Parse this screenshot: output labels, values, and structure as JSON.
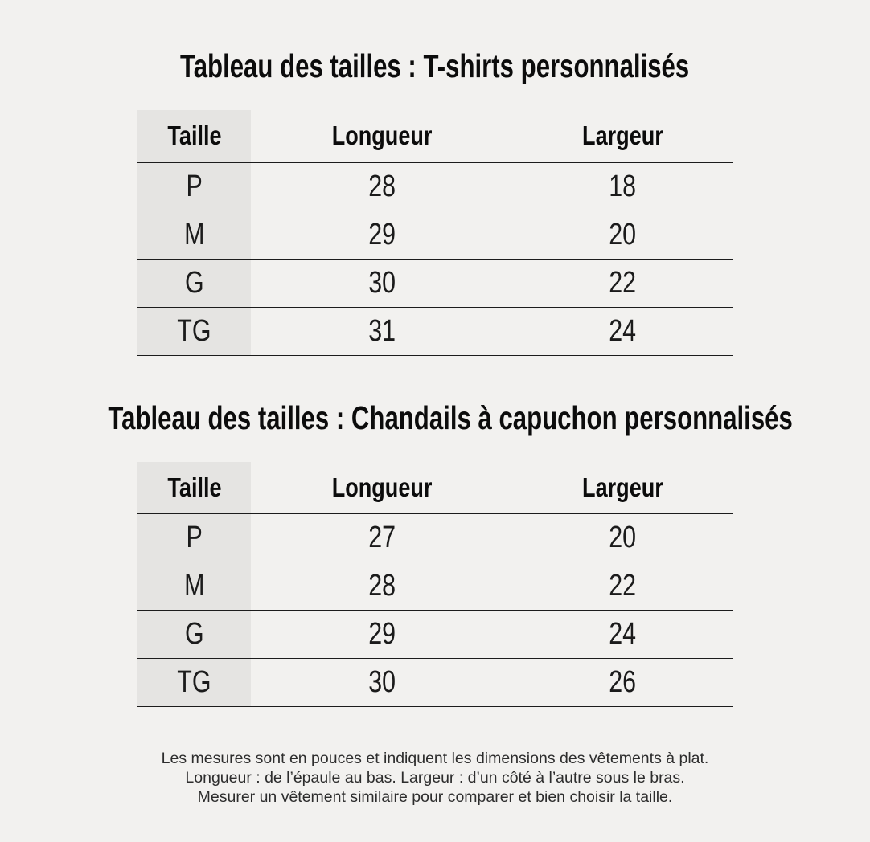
{
  "tables": [
    {
      "title": "Tableau des tailles : T-shirts personnalisés",
      "columns": [
        "Taille",
        "Longueur",
        "Largeur"
      ],
      "rows": [
        [
          "P",
          "28",
          "18"
        ],
        [
          "M",
          "29",
          "20"
        ],
        [
          "G",
          "30",
          "22"
        ],
        [
          "TG",
          "31",
          "24"
        ]
      ]
    },
    {
      "title": "Tableau des tailles : Chandails à capuchon personnalisés",
      "columns": [
        "Taille",
        "Longueur",
        "Largeur"
      ],
      "rows": [
        [
          "P",
          "27",
          "20"
        ],
        [
          "M",
          "28",
          "22"
        ],
        [
          "G",
          "29",
          "24"
        ],
        [
          "TG",
          "30",
          "26"
        ]
      ]
    }
  ],
  "footer": {
    "lines": [
      "Les mesures sont en pouces et indiquent les dimensions des vêtements à plat.",
      "Longueur : de l’épaule au bas. Largeur : d’un côté à l’autre sous le bras.",
      "Mesurer un vêtement similaire pour comparer et bien choisir la taille."
    ]
  },
  "colors": {
    "page_background": "#f2f1ef",
    "shaded_column": "#e5e4e2",
    "row_line": "#1c1c1c",
    "heading_text": "#0c0c0c",
    "body_text": "#1b1b1b",
    "footer_text": "#2d2d2d"
  }
}
